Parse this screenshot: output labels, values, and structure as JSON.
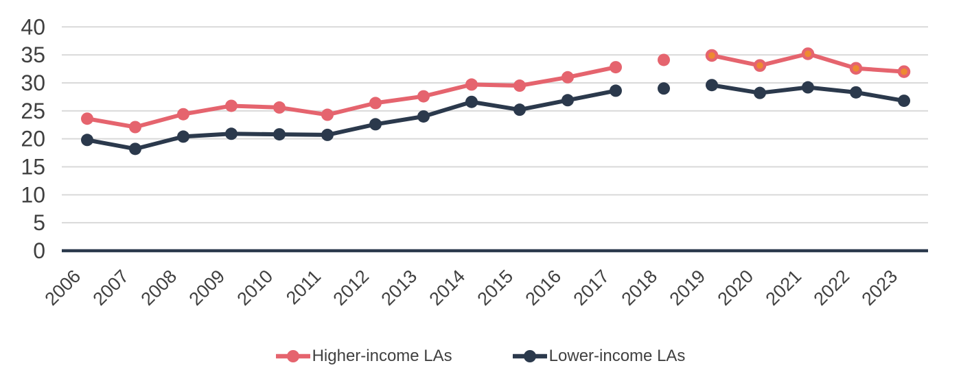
{
  "chart_data": {
    "type": "line",
    "categories": [
      "2006",
      "2007",
      "2008",
      "2009",
      "2010",
      "2011",
      "2012",
      "2013",
      "2014",
      "2015",
      "2016",
      "2017",
      "2018",
      "2019",
      "2020",
      "2021",
      "2022",
      "2023"
    ],
    "series": [
      {
        "name": "Higher-income LAs",
        "color": "#e5646e",
        "values": [
          23.6,
          22.1,
          24.4,
          25.9,
          25.6,
          24.3,
          26.4,
          27.6,
          29.7,
          29.5,
          31.0,
          32.8,
          34.1,
          34.9,
          33.1,
          35.2,
          32.6,
          32.0
        ],
        "alt_marker": {
          "fill": "#ee8a31",
          "from_category": "2019"
        }
      },
      {
        "name": "Lower-income LAs",
        "color": "#2b394c",
        "values": [
          19.8,
          18.2,
          20.4,
          20.9,
          20.8,
          20.7,
          22.6,
          24.0,
          26.6,
          25.2,
          26.9,
          28.6,
          29.0,
          29.6,
          28.2,
          29.2,
          28.3,
          26.8
        ]
      }
    ],
    "disconnected_categories": [
      "2018"
    ],
    "ylim": [
      0,
      40
    ],
    "yticks": [
      0,
      5,
      10,
      15,
      20,
      25,
      30,
      35,
      40
    ],
    "grid": "horizontal",
    "gridline_color": "#d9d9d9",
    "axis_line_color": "#2b394c",
    "text_color": "#404040",
    "legend_position": "bottom"
  }
}
